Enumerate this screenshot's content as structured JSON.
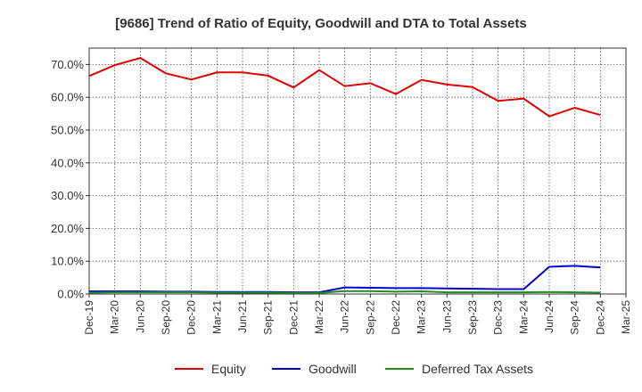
{
  "chart_data": {
    "type": "line",
    "title": "[9686]  Trend of Ratio of Equity, Goodwill and DTA to Total Assets",
    "xlabel": "",
    "ylabel": "",
    "ylim": [
      0,
      75
    ],
    "y_ticks": [
      "0.0%",
      "10.0%",
      "20.0%",
      "30.0%",
      "40.0%",
      "50.0%",
      "60.0%",
      "70.0%"
    ],
    "categories": [
      "Dec-19",
      "Mar-20",
      "Jun-20",
      "Sep-20",
      "Dec-20",
      "Mar-21",
      "Jun-21",
      "Sep-21",
      "Dec-21",
      "Mar-22",
      "Jun-22",
      "Sep-22",
      "Dec-22",
      "Mar-23",
      "Jun-23",
      "Sep-23",
      "Dec-23",
      "Mar-24",
      "Jun-24",
      "Sep-24",
      "Dec-24",
      "Mar-25"
    ],
    "grid": true,
    "legend_position": "bottom",
    "series": [
      {
        "name": "Equity",
        "color": "#dd0000",
        "values": [
          66.5,
          69.8,
          72.0,
          67.3,
          65.4,
          67.6,
          67.6,
          66.6,
          63.0,
          68.3,
          63.4,
          64.3,
          61.0,
          65.3,
          63.9,
          63.1,
          58.9,
          59.6,
          54.2,
          56.8,
          54.6,
          null
        ]
      },
      {
        "name": "Goodwill",
        "color": "#0000cc",
        "values": [
          0.8,
          0.8,
          0.8,
          0.7,
          0.7,
          0.6,
          0.6,
          0.6,
          0.5,
          0.5,
          2.0,
          1.9,
          1.8,
          1.8,
          1.7,
          1.6,
          1.5,
          1.5,
          8.3,
          8.6,
          8.1,
          null
        ]
      },
      {
        "name": "Deferred Tax Assets",
        "color": "#228b22",
        "values": [
          0.4,
          0.5,
          0.5,
          0.5,
          0.5,
          0.4,
          0.4,
          0.4,
          0.3,
          0.3,
          0.9,
          0.9,
          0.7,
          0.8,
          0.5,
          0.5,
          0.5,
          0.5,
          0.6,
          0.5,
          0.4,
          null
        ]
      }
    ]
  }
}
